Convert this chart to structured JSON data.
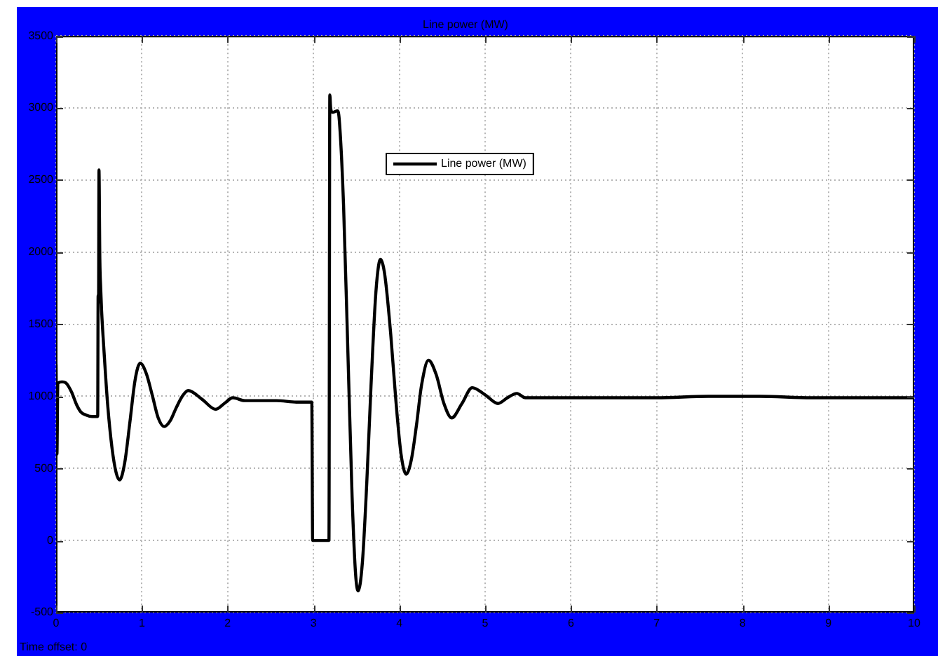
{
  "chart_data": {
    "type": "line",
    "title": "Line power (MW)",
    "annotations": [
      "Time offset: 0"
    ],
    "x": [
      0,
      0.01,
      0.02,
      0.07,
      0.12,
      0.18,
      0.24,
      0.29,
      0.35,
      0.42,
      0.485,
      0.49,
      0.495,
      0.5,
      0.51,
      0.52,
      0.53,
      0.56,
      0.6,
      0.65,
      0.7,
      0.74,
      0.8,
      0.86,
      0.92,
      0.98,
      1.05,
      1.12,
      1.19,
      1.26,
      1.33,
      1.4,
      1.47,
      1.54,
      1.7,
      1.86,
      1.96,
      2.06,
      2.2,
      2.4,
      2.57,
      2.8,
      2.98,
      2.99,
      3.18,
      3.19,
      3.2,
      3.22,
      3.28,
      3.3,
      3.35,
      3.4,
      3.45,
      3.49,
      3.52,
      3.57,
      3.62,
      3.67,
      3.72,
      3.75,
      3.78,
      3.81,
      3.84,
      3.9,
      3.96,
      4.02,
      4.08,
      4.14,
      4.2,
      4.26,
      4.34,
      4.43,
      4.52,
      4.61,
      4.73,
      4.85,
      5,
      5.15,
      5.26,
      5.37,
      5.47,
      5.58,
      6,
      6.5,
      7,
      7.6,
      8.2,
      8.8,
      9.5,
      10
    ],
    "series": [
      {
        "name": "Line power (MW)",
        "color": "#000000",
        "values": [
          1220,
          600,
          1090,
          1100,
          1090,
          1030,
          940,
          890,
          870,
          860,
          860,
          1700,
          1650,
          2570,
          1950,
          1750,
          1600,
          1300,
          950,
          650,
          470,
          420,
          540,
          820,
          1110,
          1230,
          1160,
          1010,
          850,
          790,
          830,
          920,
          1000,
          1040,
          980,
          910,
          950,
          990,
          970,
          970,
          970,
          960,
          960,
          0,
          0,
          3090,
          3000,
          2970,
          2980,
          2920,
          2330,
          1320,
          300,
          -230,
          -350,
          -150,
          390,
          1070,
          1660,
          1870,
          1950,
          1910,
          1800,
          1430,
          970,
          600,
          460,
          560,
          800,
          1080,
          1250,
          1150,
          950,
          850,
          950,
          1060,
          1010,
          950,
          990,
          1020,
          990,
          990,
          990,
          990,
          990,
          1000,
          1000,
          990,
          990,
          990
        ]
      }
    ],
    "xlim": [
      0,
      10
    ],
    "xticks": [
      0,
      1,
      2,
      3,
      4,
      5,
      6,
      7,
      8,
      9,
      10
    ],
    "ylim": [
      -500,
      3500
    ],
    "yticks": [
      -500,
      0,
      500,
      1000,
      1500,
      2000,
      2500,
      3000,
      3500
    ],
    "grid": true,
    "legend": "top",
    "marker": "none",
    "line_style": "solid"
  }
}
